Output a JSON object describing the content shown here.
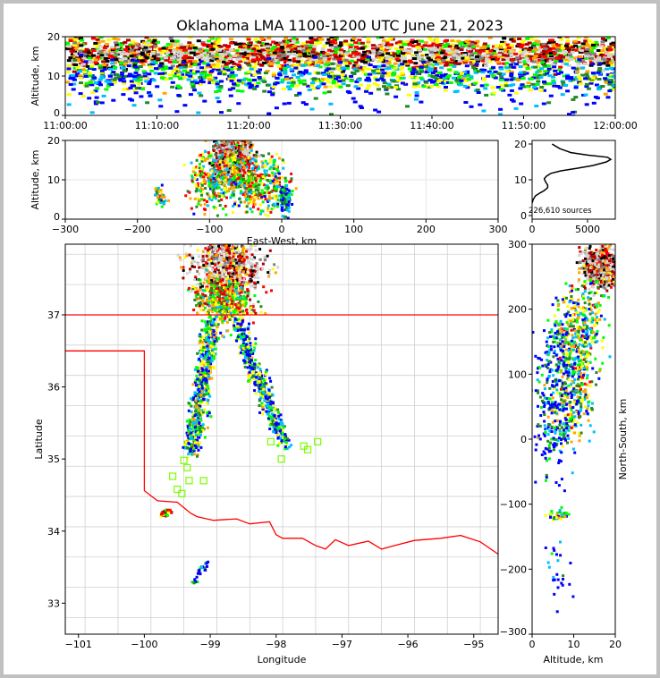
{
  "chart_data": [
    {
      "id": "time-height",
      "type": "heatmap",
      "title": "Oklahoma LMA 1100-1200 UTC June 21, 2023",
      "xlabel": "",
      "ylabel": "Altitude, km",
      "xlim_minutes": [
        0,
        60
      ],
      "ylim": [
        0,
        20
      ],
      "xticks": [
        0,
        10,
        20,
        30,
        40,
        50,
        60
      ],
      "xtick_labels": [
        "11:00:00",
        "11:10:00",
        "11:20:00",
        "11:30:00",
        "11:40:00",
        "11:50:00",
        "12:00:00"
      ],
      "yticks": [
        0,
        10,
        20
      ],
      "yticks_labels": [
        "0",
        "10",
        "20"
      ],
      "streaks": [
        {
          "from": [
            0,
            16.5
          ],
          "to": [
            60,
            16.5
          ],
          "n": 1400,
          "sx": 0,
          "sy": 2.2,
          "heat": 0.55
        },
        {
          "from": [
            38,
            15.5
          ],
          "to": [
            58,
            15.5
          ],
          "n": 700,
          "sx": 0,
          "sy": 1.5,
          "heat": 0.9
        },
        {
          "from": [
            0,
            10
          ],
          "to": [
            60,
            10
          ],
          "n": 1000,
          "sx": 0,
          "sy": 2.0,
          "heat": 0.2
        },
        {
          "from": [
            0,
            4
          ],
          "to": [
            60,
            4
          ],
          "n": 90,
          "sx": 0,
          "sy": 2.0,
          "heat": 0.0
        }
      ]
    },
    {
      "id": "ew-altitude",
      "type": "heatmap",
      "xlabel": "East-West, km",
      "ylabel": "Altitude, km",
      "xlim": [
        -300,
        300
      ],
      "ylim": [
        0,
        20
      ],
      "xticks": [
        -300,
        -200,
        -100,
        0,
        100,
        200,
        300
      ],
      "xtick_labels": [
        "−300",
        "−200",
        "−100",
        "0",
        "100",
        "200",
        "300"
      ],
      "yticks": [
        0,
        10,
        20
      ],
      "ytick_labels": [
        "0",
        "10",
        "20"
      ],
      "streaks": [
        {
          "from": [
            -80,
            16
          ],
          "to": [
            -60,
            16
          ],
          "n": 700,
          "sx": 14,
          "sy": 2.5,
          "heat": 0.85
        },
        {
          "from": [
            -120,
            10
          ],
          "to": [
            0,
            10
          ],
          "n": 700,
          "sx": 8,
          "sy": 3.5,
          "heat": 0.35
        },
        {
          "from": [
            -170,
            6
          ],
          "to": [
            -170,
            6
          ],
          "n": 40,
          "sx": 4,
          "sy": 1.5,
          "heat": 0.3
        },
        {
          "from": [
            0,
            8
          ],
          "to": [
            5,
            3
          ],
          "n": 80,
          "sx": 5,
          "sy": 2,
          "heat": 0.1
        }
      ]
    },
    {
      "id": "altitude-histogram",
      "type": "line",
      "xlim": [
        0,
        7500
      ],
      "ylim": [
        -1,
        21
      ],
      "xticks": [
        0,
        5000
      ],
      "xtick_labels": [
        "0",
        "5000"
      ],
      "yticks": [
        0,
        10,
        20
      ],
      "ytick_labels": [
        "0",
        "10",
        "20"
      ],
      "annotation": "226,610 sources",
      "points": [
        [
          0,
          3.5
        ],
        [
          100,
          4.5
        ],
        [
          300,
          5.5
        ],
        [
          700,
          6.3
        ],
        [
          1100,
          7.0
        ],
        [
          1400,
          7.8
        ],
        [
          1400,
          8.5
        ],
        [
          1200,
          9.5
        ],
        [
          1100,
          10.3
        ],
        [
          1300,
          11.0
        ],
        [
          1700,
          11.8
        ],
        [
          2600,
          12.5
        ],
        [
          4000,
          13.2
        ],
        [
          5500,
          14.0
        ],
        [
          6700,
          15.0
        ],
        [
          7100,
          15.7
        ],
        [
          6800,
          16.3
        ],
        [
          5000,
          16.9
        ],
        [
          3500,
          17.6
        ],
        [
          2500,
          18.7
        ],
        [
          1800,
          20.0
        ]
      ]
    },
    {
      "id": "plan-view",
      "type": "scatter",
      "xlabel": "Longitude",
      "ylabel": "Latitude",
      "xlim": [
        -101.2,
        -94.63
      ],
      "ylim": [
        32.57,
        37.98
      ],
      "xticks": [
        -101,
        -100,
        -99,
        -98,
        -97,
        -96,
        -95
      ],
      "xtick_labels": [
        "−101",
        "−100",
        "−99",
        "−98",
        "−97",
        "−96",
        "−95"
      ],
      "yticks": [
        33,
        34,
        35,
        36,
        37
      ],
      "ytick_labels": [
        "33",
        "34",
        "35",
        "36",
        "37"
      ],
      "border_color": "#ff0000",
      "station_color": "#7cfc00",
      "border": [
        [
          -101.2,
          36.5
        ],
        [
          -100.0,
          36.5
        ],
        [
          -100.0,
          34.56
        ],
        [
          -99.8,
          34.42
        ],
        [
          -99.5,
          34.4
        ],
        [
          -99.3,
          34.25
        ],
        [
          -99.2,
          34.2
        ],
        [
          -98.95,
          34.15
        ],
        [
          -98.6,
          34.17
        ],
        [
          -98.4,
          34.1
        ],
        [
          -98.1,
          34.13
        ],
        [
          -98.0,
          33.95
        ],
        [
          -97.9,
          33.9
        ],
        [
          -97.6,
          33.9
        ],
        [
          -97.4,
          33.8
        ],
        [
          -97.25,
          33.75
        ],
        [
          -97.1,
          33.88
        ],
        [
          -96.9,
          33.8
        ],
        [
          -96.6,
          33.86
        ],
        [
          -96.4,
          33.75
        ],
        [
          -96.2,
          33.8
        ],
        [
          -95.9,
          33.87
        ],
        [
          -95.5,
          33.9
        ],
        [
          -95.2,
          33.94
        ],
        [
          -94.9,
          33.85
        ],
        [
          -94.63,
          33.68
        ]
      ],
      "north_border": [
        [
          -101.2,
          37.0
        ],
        [
          -94.63,
          37.0
        ]
      ],
      "stations": [
        [
          -97.92,
          35.0
        ],
        [
          -98.08,
          35.24
        ],
        [
          -97.52,
          35.13
        ],
        [
          -97.37,
          35.24
        ],
        [
          -97.58,
          35.18
        ],
        [
          -99.57,
          34.76
        ],
        [
          -99.5,
          34.58
        ],
        [
          -99.43,
          34.52
        ],
        [
          -99.32,
          34.7
        ],
        [
          -99.1,
          34.7
        ],
        [
          -99.4,
          34.98
        ],
        [
          -99.35,
          34.88
        ]
      ],
      "streaks": [
        {
          "from": [
            -98.9,
            37.85
          ],
          "to": [
            -98.6,
            37.6
          ],
          "n": 700,
          "sx": 0.25,
          "sy": 0.2,
          "heat": 0.85
        },
        {
          "from": [
            -98.9,
            37.4
          ],
          "to": [
            -98.7,
            37.0
          ],
          "n": 500,
          "sx": 0.2,
          "sy": 0.1,
          "heat": 0.4
        },
        {
          "from": [
            -99.0,
            36.9
          ],
          "to": [
            -99.3,
            35.1
          ],
          "n": 600,
          "sx": 0.07,
          "sy": 0.05,
          "heat": 0.25
        },
        {
          "from": [
            -98.6,
            36.9
          ],
          "to": [
            -97.9,
            35.2
          ],
          "n": 450,
          "sx": 0.07,
          "sy": 0.05,
          "heat": 0.2
        },
        {
          "from": [
            -99.75,
            34.25
          ],
          "to": [
            -99.65,
            34.3
          ],
          "n": 30,
          "sx": 0.03,
          "sy": 0.02,
          "heat": 0.5
        },
        {
          "from": [
            -99.05,
            33.6
          ],
          "to": [
            -99.3,
            33.3
          ],
          "n": 25,
          "sx": 0.03,
          "sy": 0.03,
          "heat": 0.05
        }
      ]
    },
    {
      "id": "ns-altitude",
      "type": "heatmap",
      "xlabel": "Altitude, km",
      "ylabel": "North-South, km",
      "xlim": [
        0,
        20
      ],
      "ylim": [
        -300,
        300
      ],
      "xticks": [
        0,
        10,
        20
      ],
      "xtick_labels": [
        "0",
        "10",
        "20"
      ],
      "yticks": [
        -300,
        -200,
        -100,
        0,
        100,
        200,
        300
      ],
      "ytick_labels": [
        "−300",
        "−200",
        "−100",
        "0",
        "100",
        "200",
        "300"
      ],
      "streaks": [
        {
          "from": [
            16,
            275
          ],
          "to": [
            16,
            260
          ],
          "n": 600,
          "sx": 2.2,
          "sy": 15,
          "heat": 0.85
        },
        {
          "from": [
            12,
            220
          ],
          "to": [
            8,
            20
          ],
          "n": 700,
          "sx": 3,
          "sy": 20,
          "heat": 0.3
        },
        {
          "from": [
            5,
            150
          ],
          "to": [
            5,
            -20
          ],
          "n": 250,
          "sx": 2.5,
          "sy": 30,
          "heat": 0.05
        },
        {
          "from": [
            6,
            -115
          ],
          "to": [
            6,
            -115
          ],
          "n": 40,
          "sx": 1.3,
          "sy": 4,
          "heat": 0.3
        },
        {
          "from": [
            6,
            -200
          ],
          "to": [
            6,
            -200
          ],
          "n": 25,
          "sx": 1.5,
          "sy": 20,
          "heat": 0.0
        }
      ]
    }
  ],
  "palette": [
    "#0000ff",
    "#00bfff",
    "#00ff00",
    "#228b22",
    "#ffff00",
    "#ffa500",
    "#ff0000",
    "#b00000",
    "#000000",
    "#808080",
    "#d3d3d3"
  ]
}
